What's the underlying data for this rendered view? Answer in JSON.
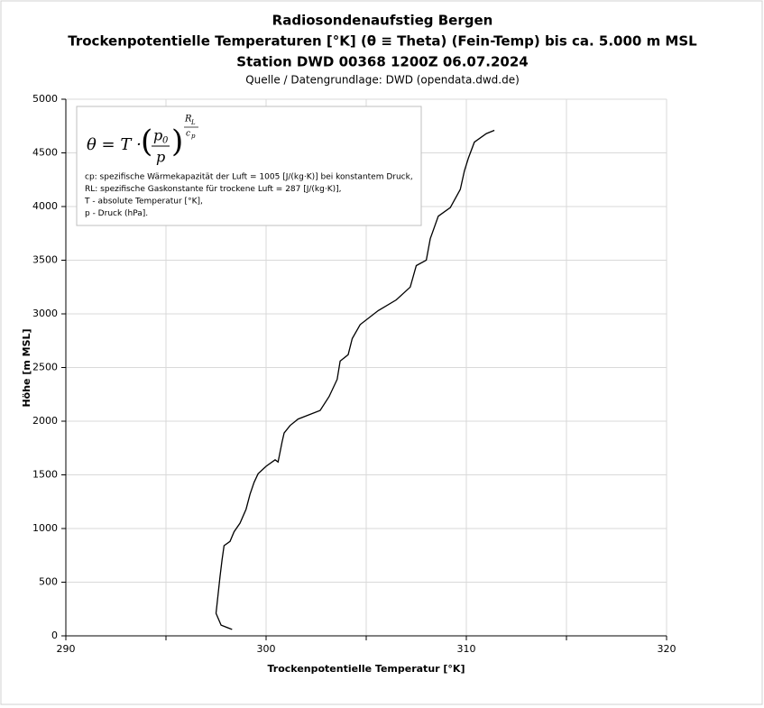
{
  "chart_data": {
    "type": "line",
    "title": "Radiosondenaufstieg Bergen",
    "subtitle": "Trockenpotentielle Temperaturen [°K] (θ ≡ Theta) (Fein-Temp) bis ca. 5.000 m MSL",
    "subtitle2": "Station DWD 00368 1200Z 06.07.2024",
    "source": "Quelle / Datengrundlage: DWD (opendata.dwd.de)",
    "x_label": "Trockenpotentielle Temperatur [°K]",
    "y_label": "Höhe [m MSL]",
    "x": [
      298.3,
      297.75,
      297.5,
      297.6,
      297.7,
      297.8,
      297.9,
      298.2,
      298.4,
      298.7,
      299.0,
      299.2,
      299.4,
      299.6,
      300.0,
      300.45,
      300.6,
      300.8,
      300.9,
      301.2,
      301.6,
      302.7,
      303.15,
      303.55,
      303.7,
      304.1,
      304.3,
      304.7,
      305.6,
      306.5,
      307.2,
      307.5,
      308.0,
      308.2,
      308.6,
      309.2,
      309.7,
      309.9,
      310.1,
      310.4,
      311.0,
      311.4
    ],
    "series": [
      {
        "color": "#000000",
        "values": [
          60,
          100,
          210,
          380,
          550,
          710,
          840,
          880,
          970,
          1050,
          1180,
          1320,
          1430,
          1510,
          1580,
          1640,
          1620,
          1810,
          1890,
          1960,
          2020,
          2100,
          2230,
          2390,
          2560,
          2620,
          2770,
          2900,
          3030,
          3130,
          3250,
          3450,
          3500,
          3700,
          3910,
          3990,
          4160,
          4330,
          4450,
          4600,
          4680,
          4710
        ]
      }
    ],
    "xlim": [
      290,
      320
    ],
    "xticks": [
      290,
      300,
      310,
      320
    ],
    "x_minor_grid": [
      295,
      305,
      315
    ],
    "ylim": [
      0,
      5000
    ],
    "yticks": [
      0,
      500,
      1000,
      1500,
      2000,
      2500,
      3000,
      3500,
      4000,
      4500,
      5000
    ],
    "grid": true,
    "formula": {
      "lhs": "θ = T ·",
      "numerator": "p",
      "numerator_sub": "0",
      "denominator": "p",
      "exponent_numerator": "R",
      "exponent_numerator_sub": "L",
      "exponent_denominator": "c",
      "exponent_denominator_sub": "p"
    },
    "notes": [
      "cp: spezifische Wärmekapazität der Luft = 1005 [J/(kg·K)] bei konstantem Druck,",
      "RL: spezifische Gaskonstante für trockene Luft = 287 [J/(kg·K)],",
      "T - absolute Temperatur [°K],",
      "p - Druck (hPa]."
    ]
  }
}
